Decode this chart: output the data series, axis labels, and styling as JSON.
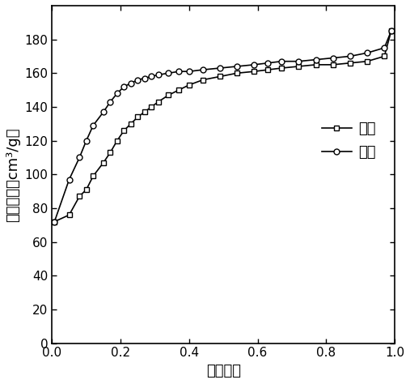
{
  "adsorption_x": [
    0.007,
    0.05,
    0.08,
    0.1,
    0.12,
    0.15,
    0.17,
    0.19,
    0.21,
    0.23,
    0.25,
    0.27,
    0.29,
    0.31,
    0.34,
    0.37,
    0.4,
    0.44,
    0.49,
    0.54,
    0.59,
    0.63,
    0.67,
    0.72,
    0.77,
    0.82,
    0.87,
    0.92,
    0.97,
    0.99
  ],
  "adsorption_y": [
    72,
    76,
    87,
    91,
    99,
    107,
    113,
    120,
    126,
    130,
    134,
    137,
    140,
    143,
    147,
    150,
    153,
    156,
    158,
    160,
    161,
    162,
    163,
    164,
    165,
    165,
    166,
    167,
    170,
    185
  ],
  "desorption_x": [
    0.99,
    0.97,
    0.92,
    0.87,
    0.82,
    0.77,
    0.72,
    0.67,
    0.63,
    0.59,
    0.54,
    0.49,
    0.44,
    0.4,
    0.37,
    0.34,
    0.31,
    0.29,
    0.27,
    0.25,
    0.23,
    0.21,
    0.19,
    0.17,
    0.15,
    0.12,
    0.1,
    0.08,
    0.05,
    0.007
  ],
  "desorption_y": [
    185,
    175,
    172,
    170,
    169,
    168,
    167,
    167,
    166,
    165,
    164,
    163,
    162,
    161,
    161,
    160,
    159,
    158,
    157,
    156,
    154,
    152,
    148,
    143,
    137,
    129,
    120,
    110,
    97,
    72
  ],
  "xlabel": "相对压力",
  "ylabel": "吸附体积（cm³/g）",
  "legend_adsorption": "吸附",
  "legend_desorption": "脱附",
  "xlim": [
    0.0,
    1.0
  ],
  "ylim": [
    0,
    200
  ],
  "yticks": [
    0,
    20,
    40,
    60,
    80,
    100,
    120,
    140,
    160,
    180
  ],
  "xticks": [
    0.0,
    0.2,
    0.4,
    0.6,
    0.8,
    1.0
  ],
  "line_color": "#000000",
  "marker_adsorption": "s",
  "marker_desorption": "o",
  "marker_size": 5,
  "linewidth": 1.2,
  "font_size_label": 13,
  "font_size_tick": 11,
  "font_size_legend": 13,
  "background_color": "#ffffff"
}
